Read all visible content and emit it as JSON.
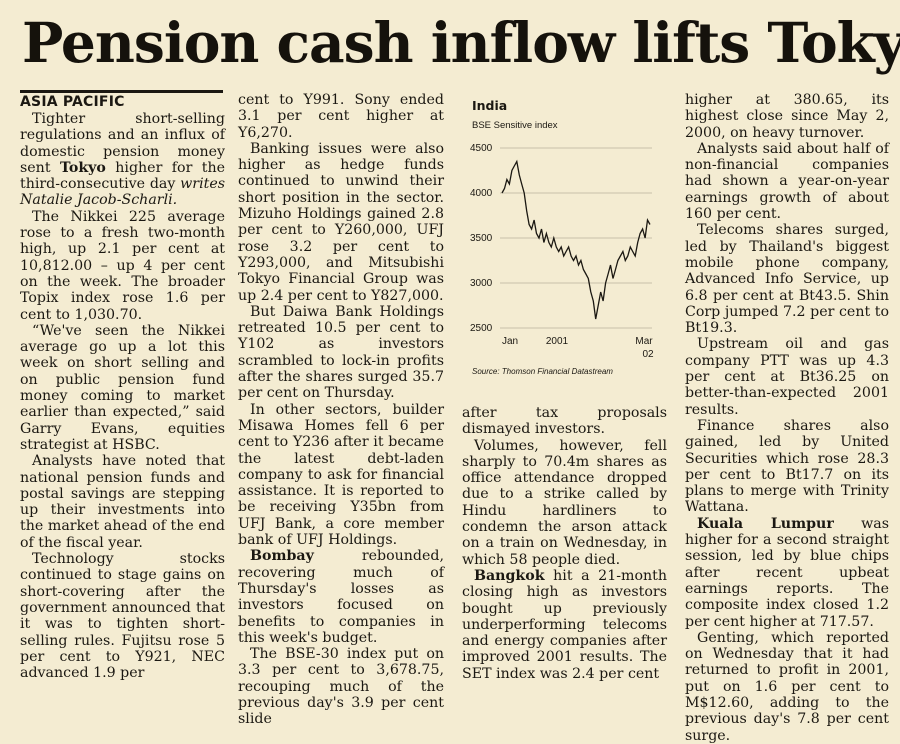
{
  "headline": "Pension cash inflow lifts Tokyo",
  "section": "ASIA PACIFIC",
  "col1": [
    {
      "indent": true,
      "text": "Tighter short-selling regulations and an influx of domestic pension money sent ",
      "bold": "Tokyo",
      "rest": " higher for the third-consecutive day ",
      "italic": "writes Natalie Jacob-Scharli."
    },
    {
      "text": "The Nikkei 225 average rose to a fresh two-month high, up 2.1 per cent at 10,812.00 – up 4 per cent on the week. The broader Topix index rose 1.6 per cent to 1,030.70."
    },
    {
      "text": "“We've seen the Nikkei average go up a lot this week on short selling and on public pension fund money coming to market earlier than expected,” said Garry Evans, equities strategist at HSBC."
    },
    {
      "text": "Analysts have noted that national pension funds and postal savings are stepping up their investments into the market ahead of the end of the fiscal year."
    },
    {
      "text": "Technology stocks continued to stage gains on short-covering after the government announced that it was to tighten short-selling rules. Fujitsu rose 5 per cent to Y921, NEC advanced 1.9 per"
    }
  ],
  "col2": [
    {
      "noindent": true,
      "text": "cent to Y991. Sony ended 3.1 per cent higher at Y6,270."
    },
    {
      "text": "Banking issues were also higher as hedge funds continued to unwind their short position in the sector. Mizuho Holdings gained 2.8 per cent to Y260,000, UFJ rose 3.2 per cent to Y293,000, and Mitsubishi Tokyo Financial Group was up 2.4 per cent to Y827,000."
    },
    {
      "text": "But Daiwa Bank Holdings retreated 10.5 per cent to Y102 as investors scrambled to lock-in profits after the shares surged 35.7 per cent on Thursday."
    },
    {
      "text": "In other sectors, builder Misawa Homes fell 6 per cent to Y236 after it became the latest debt-laden company to ask for financial assistance. It is reported to be receiving Y35bn from UFJ Bank, a core member bank of UFJ Holdings."
    },
    {
      "bold": "Bombay",
      "rest": " rebounded, recovering much of Thursday's losses as investors focused on benefits to companies in this week's budget."
    },
    {
      "text": "The BSE-30 index put on 3.3 per cent to 3,678.75, recouping much of the previous day's 3.9 per cent slide"
    }
  ],
  "col3": [
    {
      "noindent": true,
      "text": "after tax proposals dismayed investors."
    },
    {
      "text": "Volumes, however, fell sharply to 70.4m shares as office attendance dropped due to a strike called by Hindu hardliners to condemn the arson attack on a train on Wednesday, in which 58 people died."
    },
    {
      "bold": "Bangkok",
      "rest": " hit a 21-month closing high as investors bought up previously underperforming telecoms and energy companies after improved 2001 results. The SET index was 2.4 per cent"
    }
  ],
  "col4": [
    {
      "noindent": true,
      "text": "higher at 380.65, its highest close since May 2, 2000, on heavy turnover."
    },
    {
      "text": "Analysts said about half of non-financial companies had shown a year-on-year earnings growth of about 160 per cent."
    },
    {
      "text": "Telecoms shares surged, led by Thailand's biggest mobile phone company, Advanced Info Service, up 6.8 per cent at Bt43.5. Shin Corp jumped 7.2 per cent to Bt19.3."
    },
    {
      "text": "Upstream oil and gas company PTT was up 4.3 per cent at Bt36.25 on better-than-expected 2001 results."
    },
    {
      "text": "Finance shares also gained, led by United Securities which rose 28.3 per cent to Bt17.7 on its plans to merge with Trinity Wattana."
    },
    {
      "bold": "Kuala Lumpur",
      "rest": " was higher for a second straight session, led by blue chips after recent upbeat earnings reports. The composite index closed 1.2 per cent higher at 717.57."
    },
    {
      "text": "Genting, which reported on Wednesday that it had returned to profit in 2001, put on 1.6 per cent to M$12.60, adding to the previous day's 7.8 per cent surge."
    }
  ],
  "chart": {
    "title": "India",
    "subtitle": "BSE Sensitive index",
    "source": "Source: Thomson Financial Datastream",
    "xticks": [
      "Jan",
      "2001",
      "Mar",
      "02"
    ],
    "yticks": [
      "4500",
      "4000",
      "3500",
      "3000",
      "2500"
    ]
  },
  "chart_data": {
    "type": "line",
    "title": "India",
    "subtitle": "BSE Sensitive index",
    "ylim": [
      2500,
      4500
    ],
    "x_range": [
      "Jan 2001",
      "Mar 2002"
    ],
    "series": [
      {
        "values": [
          4000,
          4050,
          4150,
          4100,
          4250,
          4300,
          4350,
          4200,
          4100,
          4000,
          3800,
          3650,
          3600,
          3700,
          3550,
          3500,
          3600,
          3450,
          3550,
          3450,
          3400,
          3500,
          3400,
          3350,
          3400,
          3300,
          3350,
          3400,
          3300,
          3250,
          3300,
          3200,
          3250,
          3150,
          3100,
          3050,
          2900,
          2800,
          2600,
          2750,
          2900,
          2800,
          3000,
          3100,
          3200,
          3050,
          3150,
          3250,
          3300,
          3350,
          3250,
          3300,
          3400,
          3350,
          3300,
          3450,
          3550,
          3600,
          3500,
          3700,
          3650
        ]
      }
    ],
    "grid": true
  }
}
